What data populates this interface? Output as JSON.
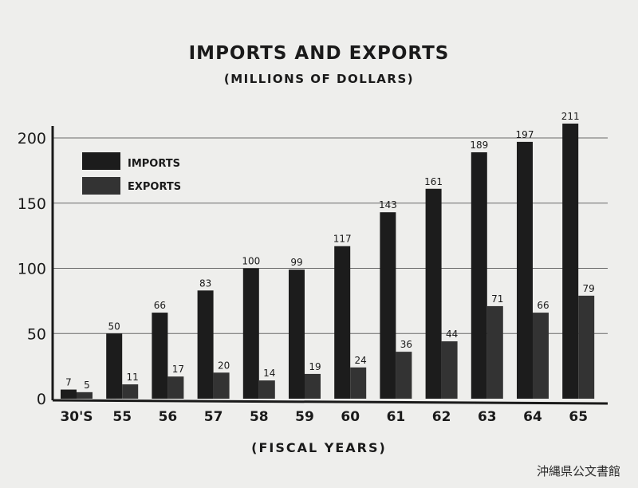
{
  "chart_data": {
    "type": "bar",
    "title": "IMPORTS AND EXPORTS",
    "subtitle": "(MILLIONS OF DOLLARS)",
    "xlabel": "(FISCAL YEARS)",
    "ylabel": "",
    "categories": [
      "30'S",
      "55",
      "56",
      "57",
      "58",
      "59",
      "60",
      "61",
      "62",
      "63",
      "64",
      "65"
    ],
    "series": [
      {
        "name": "IMPORTS",
        "values": [
          7,
          50,
          66,
          83,
          100,
          99,
          117,
          143,
          161,
          189,
          197,
          211
        ],
        "color": "#1c1c1c"
      },
      {
        "name": "EXPORTS",
        "values": [
          5,
          11,
          17,
          20,
          14,
          19,
          24,
          36,
          44,
          71,
          66,
          79
        ],
        "color": "#333333"
      }
    ],
    "ylim": [
      0,
      210
    ],
    "yticks": [
      0,
      50,
      100,
      150,
      200
    ],
    "grid": true,
    "legend": "top-left"
  },
  "archive_mark": "沖縄県公文書館"
}
